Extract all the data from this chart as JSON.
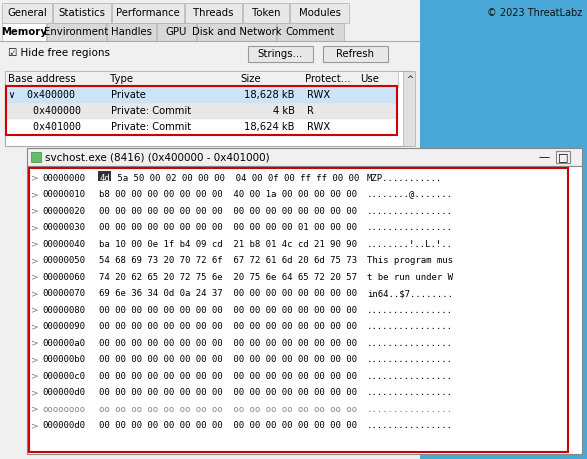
{
  "copyright": "© 2023 ThreatLabz",
  "tab_row1": [
    "General",
    "Statistics",
    "Performance",
    "Threads",
    "Token",
    "Modules"
  ],
  "tab_row2": [
    "Memory",
    "Environment",
    "Handles",
    "GPU",
    "Disk and Network",
    "Comment"
  ],
  "checkbox_label": "☑ Hide free regions",
  "btn1": "Strings...",
  "btn2": "Refresh",
  "table_headers": [
    "Base address",
    "Type",
    "Size",
    "Protect...",
    "Use"
  ],
  "table_rows": [
    [
      "∨  0x400000",
      "Private",
      "18,628 kB",
      "RWX",
      ""
    ],
    [
      "    0x400000",
      "Private: Commit",
      "4 kB",
      "R",
      ""
    ],
    [
      "    0x401000",
      "Private: Commit",
      "18,624 kB",
      "RWX",
      ""
    ]
  ],
  "row_colors": [
    "#cce4f7",
    "#e8e8e8",
    "#ffffff"
  ],
  "highlight_border": "#cc0000",
  "subwin_title": "svchost.exe (8416) (0x400000 - 0x401000)",
  "hex_lines": [
    [
      "00000000",
      "4d 5a 50 00 02 00 00 00  04 00 0f 00 ff ff 00 00",
      "MZP..........."
    ],
    [
      "00000010",
      "b8 00 00 00 00 00 00 00  40 00 1a 00 00 00 00 00",
      "........@......."
    ],
    [
      "00000020",
      "00 00 00 00 00 00 00 00  00 00 00 00 00 00 00 00",
      "................"
    ],
    [
      "00000030",
      "00 00 00 00 00 00 00 00  00 00 00 00 01 00 00 00",
      "................"
    ],
    [
      "00000040",
      "ba 10 00 0e 1f b4 09 cd  21 b8 01 4c cd 21 90 90",
      "........!..L.!.."
    ],
    [
      "00000050",
      "54 68 69 73 20 70 72 6f  67 72 61 6d 20 6d 75 73",
      "This program mus"
    ],
    [
      "00000060",
      "74 20 62 65 20 72 75 6e  20 75 6e 64 65 72 20 57",
      "t be run under W"
    ],
    [
      "00000070",
      "69 6e 36 34 0d 0a 24 37  00 00 00 00 00 00 00 00",
      "in64..$7........"
    ],
    [
      "00000080",
      "00 00 00 00 00 00 00 00  00 00 00 00 00 00 00 00",
      "................"
    ],
    [
      "00000090",
      "00 00 00 00 00 00 00 00  00 00 00 00 00 00 00 00",
      "................"
    ],
    [
      "000000a0",
      "00 00 00 00 00 00 00 00  00 00 00 00 00 00 00 00",
      "................"
    ],
    [
      "000000b0",
      "00 00 00 00 00 00 00 00  00 00 00 00 00 00 00 00",
      "................"
    ],
    [
      "000000c0",
      "00 00 00 00 00 00 00 00  00 00 00 00 00 00 00 00",
      "................"
    ],
    [
      "000000d0",
      "00 00 00 00 00 00 00 00  00 00 00 00 00 00 00 00",
      "................"
    ],
    [
      "oooooooo",
      "oo oo oo oo oo oo oo oo  oo oo oo oo oo oo oo oo",
      "................"
    ],
    [
      "000000d0",
      "00 00 00 00 00 00 00 00  00 00 00 00 00 00 00 00",
      "................"
    ]
  ],
  "bg_main": "#f0f0f0",
  "bg_blue": "#49a8d8",
  "tab_bg": "#f0f0f0",
  "active_tab_bg": "#ffffff",
  "border_color": "#aaaaaa"
}
